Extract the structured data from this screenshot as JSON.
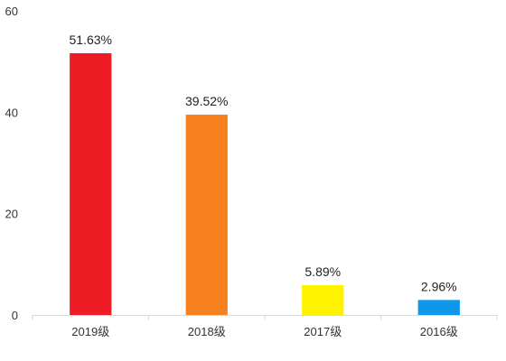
{
  "chart_data": {
    "type": "bar",
    "categories": [
      "2019级",
      "2018级",
      "2017级",
      "2016级"
    ],
    "values": [
      51.63,
      39.52,
      5.89,
      2.96
    ],
    "data_labels": [
      "51.63%",
      "39.52%",
      "5.89%",
      "2.96%"
    ],
    "colors": [
      "#ee1c25",
      "#f7811f",
      "#fff200",
      "#0f97e9"
    ],
    "title": "",
    "xlabel": "",
    "ylabel": "",
    "ylim": [
      0,
      60
    ],
    "yticks": [
      0,
      20,
      40,
      60
    ],
    "grid": false,
    "legend": "none"
  }
}
